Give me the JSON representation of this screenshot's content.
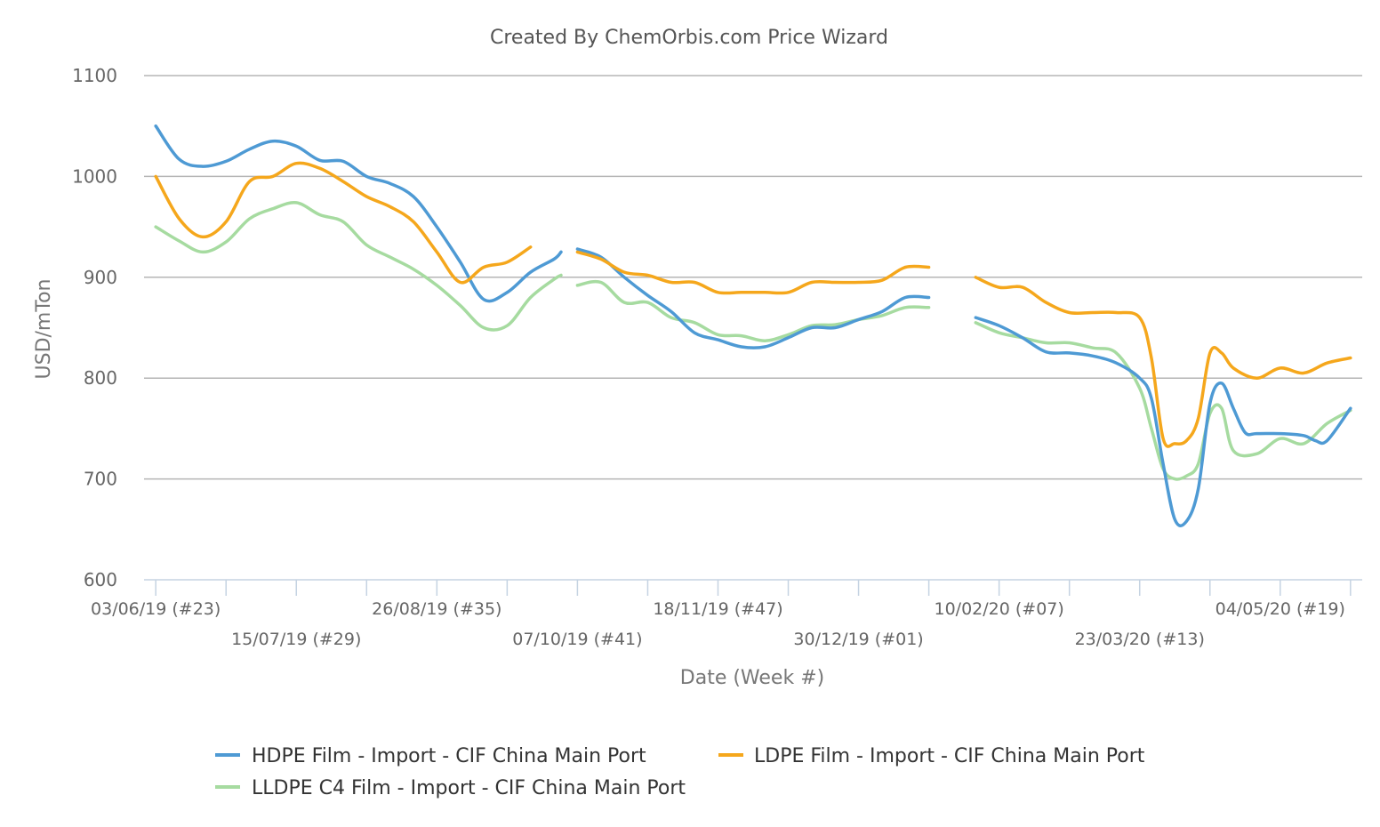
{
  "chart_data": {
    "type": "line",
    "title": "Created By ChemOrbis.com Price Wizard",
    "xlabel": "Date (Week #)",
    "ylabel": "USD/mTon",
    "ylim": [
      600,
      1100
    ],
    "yticks": [
      600,
      700,
      800,
      900,
      1000,
      1100
    ],
    "grid": true,
    "legend_position": "bottom",
    "x_tick_labels": [
      {
        "week": 0,
        "label": "03/06/19 (#23)"
      },
      {
        "week": 6,
        "label": "15/07/19 (#29)"
      },
      {
        "week": 12,
        "label": "26/08/19 (#35)"
      },
      {
        "week": 18,
        "label": "07/10/19 (#41)"
      },
      {
        "week": 24,
        "label": "18/11/19 (#47)"
      },
      {
        "week": 30,
        "label": "30/12/19 (#01)"
      },
      {
        "week": 36,
        "label": "10/02/20 (#07)"
      },
      {
        "week": 42,
        "label": "23/03/20 (#13)"
      },
      {
        "week": 48,
        "label": "04/05/20 (#19)"
      }
    ],
    "x_tick_marks": [
      0,
      3,
      6,
      9,
      12,
      15,
      18,
      21,
      24,
      27,
      30,
      33,
      36,
      39,
      42,
      45,
      48,
      51
    ],
    "x_range": [
      -0.5,
      51.5
    ],
    "series": [
      {
        "name": "HDPE Film - Import - CIF China Main Port",
        "color": "#4e9ad4",
        "points": [
          [
            [
              0,
              1050
            ],
            [
              1,
              1017
            ],
            [
              2,
              1010
            ],
            [
              3,
              1015
            ],
            [
              4,
              1027
            ],
            [
              5,
              1035
            ],
            [
              6,
              1030
            ],
            [
              7,
              1016
            ],
            [
              8,
              1015
            ],
            [
              9,
              1000
            ],
            [
              10,
              993
            ],
            [
              11,
              980
            ],
            [
              12,
              950
            ],
            [
              13,
              915
            ],
            [
              14,
              878
            ],
            [
              15,
              885
            ],
            [
              16,
              905
            ],
            [
              17,
              918
            ],
            [
              17.3,
              925
            ]
          ],
          [
            [
              18,
              928
            ],
            [
              19,
              920
            ],
            [
              20,
              900
            ],
            [
              21,
              882
            ],
            [
              22,
              866
            ],
            [
              23,
              845
            ],
            [
              24,
              838
            ],
            [
              25,
              831
            ],
            [
              26,
              831
            ],
            [
              27,
              840
            ],
            [
              28,
              850
            ],
            [
              29,
              850
            ],
            [
              30,
              858
            ],
            [
              31,
              866
            ],
            [
              32,
              880
            ],
            [
              33,
              880
            ]
          ],
          [
            [
              35,
              860
            ],
            [
              36,
              852
            ],
            [
              37,
              840
            ],
            [
              38,
              826
            ],
            [
              39,
              825
            ],
            [
              40,
              822
            ],
            [
              41,
              815
            ],
            [
              42,
              800
            ],
            [
              42.5,
              780
            ],
            [
              43,
              715
            ],
            [
              43.5,
              660
            ],
            [
              44,
              658
            ],
            [
              44.5,
              690
            ],
            [
              45,
              775
            ],
            [
              45.5,
              795
            ],
            [
              46,
              770
            ],
            [
              46.5,
              746
            ],
            [
              47,
              745
            ],
            [
              48,
              745
            ],
            [
              49,
              743
            ],
            [
              49.5,
              738
            ],
            [
              50,
              738
            ],
            [
              51,
              770
            ]
          ]
        ]
      },
      {
        "name": "LDPE Film - Import - CIF China Main Port",
        "color": "#f5a71c",
        "points": [
          [
            [
              0,
              1000
            ],
            [
              1,
              958
            ],
            [
              2,
              940
            ],
            [
              3,
              955
            ],
            [
              4,
              995
            ],
            [
              5,
              1000
            ],
            [
              6,
              1013
            ],
            [
              7,
              1008
            ],
            [
              8,
              995
            ],
            [
              9,
              980
            ],
            [
              10,
              970
            ],
            [
              11,
              955
            ],
            [
              12,
              925
            ],
            [
              13,
              895
            ],
            [
              14,
              910
            ],
            [
              15,
              915
            ],
            [
              16,
              930
            ]
          ],
          [
            [
              18,
              925
            ],
            [
              19,
              918
            ],
            [
              20,
              905
            ],
            [
              21,
              902
            ],
            [
              22,
              895
            ],
            [
              23,
              895
            ],
            [
              24,
              885
            ],
            [
              25,
              885
            ],
            [
              26,
              885
            ],
            [
              27,
              885
            ],
            [
              28,
              895
            ],
            [
              29,
              895
            ],
            [
              30,
              895
            ],
            [
              31,
              897
            ],
            [
              32,
              910
            ],
            [
              33,
              910
            ]
          ],
          [
            [
              35,
              900
            ],
            [
              36,
              890
            ],
            [
              37,
              890
            ],
            [
              38,
              875
            ],
            [
              39,
              865
            ],
            [
              40,
              865
            ],
            [
              41,
              865
            ],
            [
              42,
              860
            ],
            [
              42.5,
              820
            ],
            [
              43,
              740
            ],
            [
              43.5,
              735
            ],
            [
              44,
              738
            ],
            [
              44.5,
              760
            ],
            [
              45,
              825
            ],
            [
              45.5,
              825
            ],
            [
              46,
              810
            ],
            [
              47,
              800
            ],
            [
              48,
              810
            ],
            [
              49,
              805
            ],
            [
              50,
              815
            ],
            [
              51,
              820
            ]
          ]
        ]
      },
      {
        "name": "LLDPE C4 Film - Import - CIF China Main Port",
        "color": "#a6dba0",
        "points": [
          [
            [
              0,
              950
            ],
            [
              1,
              936
            ],
            [
              2,
              925
            ],
            [
              3,
              935
            ],
            [
              4,
              958
            ],
            [
              5,
              968
            ],
            [
              6,
              974
            ],
            [
              7,
              962
            ],
            [
              8,
              955
            ],
            [
              9,
              932
            ],
            [
              10,
              920
            ],
            [
              11,
              908
            ],
            [
              12,
              892
            ],
            [
              13,
              872
            ],
            [
              14,
              850
            ],
            [
              15,
              852
            ],
            [
              16,
              880
            ],
            [
              17,
              898
            ],
            [
              17.3,
              902
            ]
          ],
          [
            [
              18,
              892
            ],
            [
              19,
              895
            ],
            [
              20,
              875
            ],
            [
              21,
              875
            ],
            [
              22,
              860
            ],
            [
              23,
              855
            ],
            [
              24,
              843
            ],
            [
              25,
              842
            ],
            [
              26,
              837
            ],
            [
              27,
              843
            ],
            [
              28,
              852
            ],
            [
              29,
              853
            ],
            [
              30,
              858
            ],
            [
              31,
              862
            ],
            [
              32,
              870
            ],
            [
              33,
              870
            ]
          ],
          [
            [
              35,
              855
            ],
            [
              36,
              845
            ],
            [
              37,
              840
            ],
            [
              38,
              835
            ],
            [
              39,
              835
            ],
            [
              40,
              830
            ],
            [
              41,
              825
            ],
            [
              42,
              790
            ],
            [
              42.5,
              750
            ],
            [
              43,
              710
            ],
            [
              43.5,
              700
            ],
            [
              44,
              703
            ],
            [
              44.5,
              715
            ],
            [
              45,
              765
            ],
            [
              45.5,
              770
            ],
            [
              46,
              728
            ],
            [
              47,
              725
            ],
            [
              48,
              740
            ],
            [
              49,
              735
            ],
            [
              50,
              755
            ],
            [
              51,
              768
            ]
          ]
        ]
      }
    ]
  }
}
